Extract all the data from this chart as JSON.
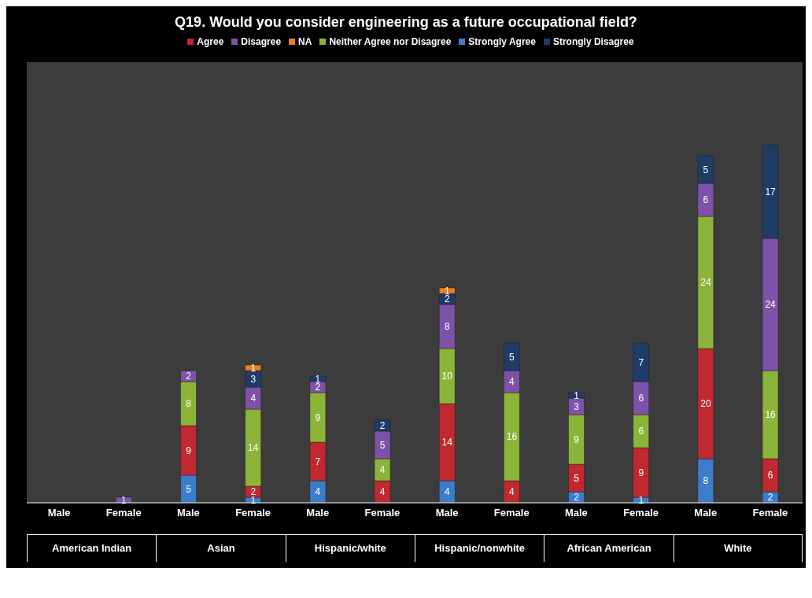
{
  "chart_data": {
    "type": "bar",
    "title": "Q19. Would you consider engineering as a future occupational field?",
    "categories": [
      "Male",
      "Female",
      "Male",
      "Female",
      "Male",
      "Female",
      "Male",
      "Female",
      "Male",
      "Female",
      "Male",
      "Female"
    ],
    "annotations": [
      "American Indian",
      "Asian",
      "Hispanic/white",
      "Hispanic/nonwhite",
      "African American",
      "White"
    ],
    "stacked": true,
    "data_labels": true,
    "legend": "top",
    "grid": false,
    "series": [
      {
        "name": "Strongly Agree",
        "color": "#3d7cc9",
        "values": [
          null,
          null,
          5,
          1,
          4,
          null,
          4,
          null,
          2,
          1,
          8,
          2
        ]
      },
      {
        "name": "Agree",
        "color": "#c0292f",
        "values": [
          null,
          null,
          9,
          2,
          7,
          4,
          14,
          4,
          5,
          9,
          20,
          6
        ]
      },
      {
        "name": "Neither Agree nor Disagree",
        "color": "#8db43a",
        "values": [
          null,
          null,
          8,
          14,
          9,
          4,
          10,
          16,
          9,
          6,
          24,
          16
        ]
      },
      {
        "name": "Disagree",
        "color": "#7e52a8",
        "values": [
          null,
          1,
          2,
          4,
          2,
          5,
          8,
          4,
          3,
          6,
          6,
          24
        ]
      },
      {
        "name": "Strongly Disagree",
        "color": "#1f3b66",
        "values": [
          null,
          null,
          null,
          3,
          1,
          2,
          2,
          5,
          1,
          7,
          5,
          17
        ]
      },
      {
        "name": "NA",
        "color": "#e8821e",
        "values": [
          null,
          null,
          null,
          1,
          null,
          null,
          1,
          null,
          null,
          null,
          null,
          null
        ]
      }
    ]
  }
}
